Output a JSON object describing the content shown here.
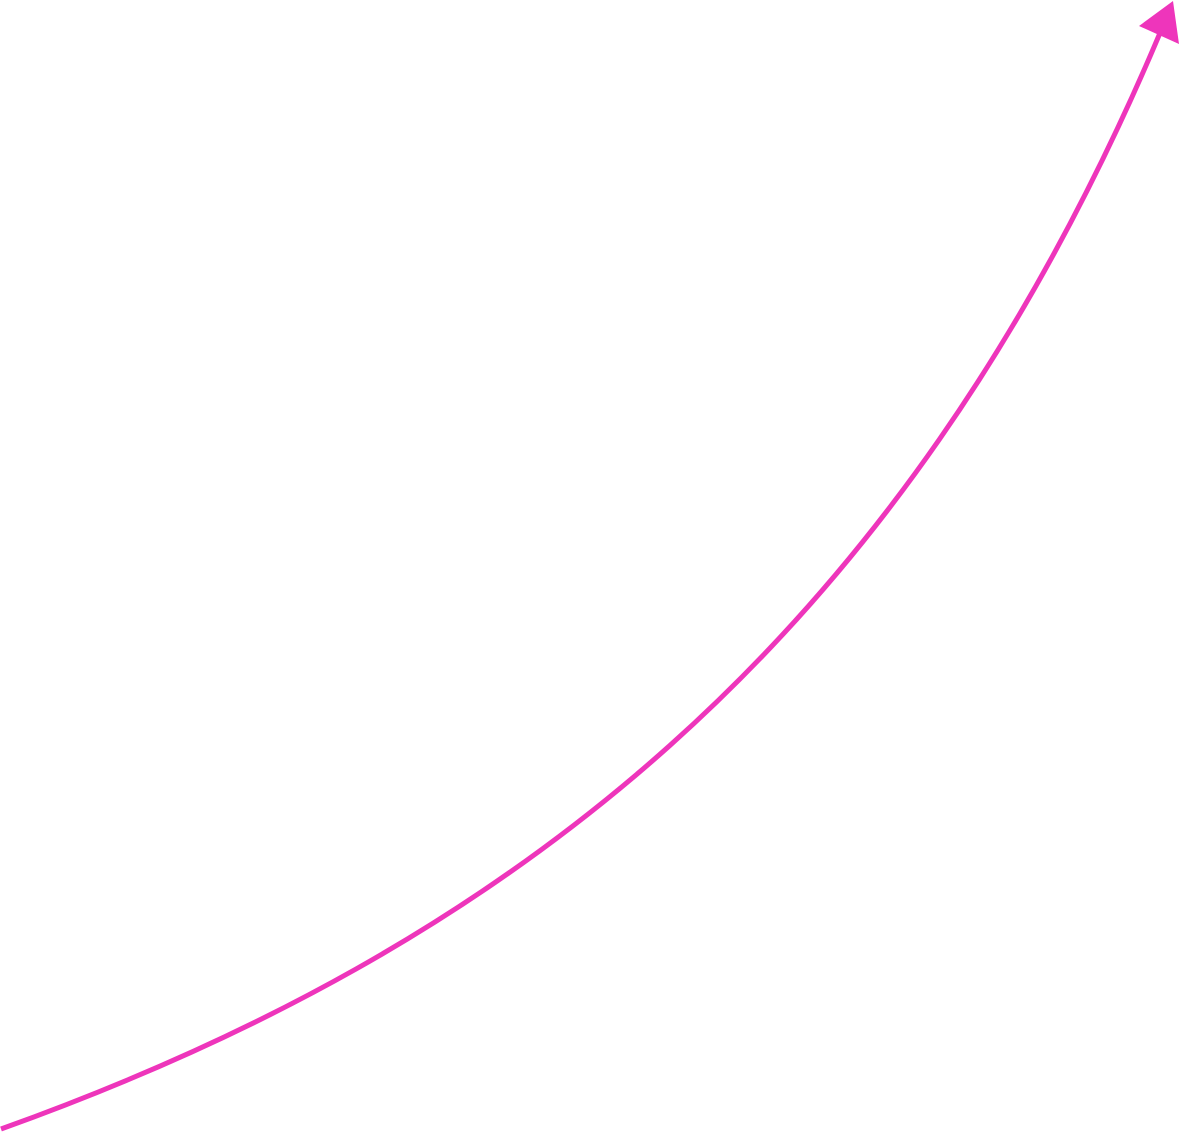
{
  "arrow": {
    "icon": "curved-arrow-up-right",
    "color": "#ee35bb"
  }
}
